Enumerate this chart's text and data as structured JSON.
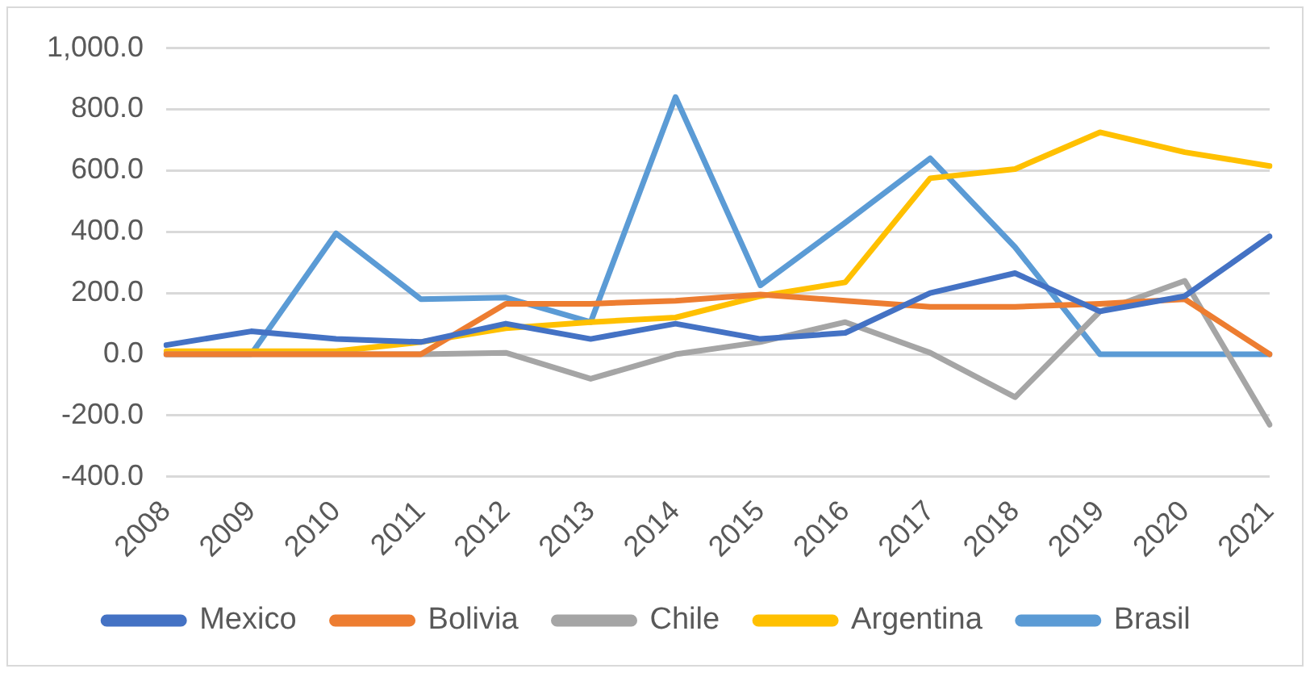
{
  "chart_data": {
    "type": "line",
    "categories": [
      "2008",
      "2009",
      "2010",
      "2011",
      "2012",
      "2013",
      "2014",
      "2015",
      "2016",
      "2017",
      "2018",
      "2019",
      "2020",
      "2021"
    ],
    "series": [
      {
        "name": "Mexico",
        "color": "#4472c4",
        "values": [
          30,
          75,
          50,
          40,
          100,
          50,
          100,
          50,
          70,
          200,
          265,
          140,
          190,
          385
        ]
      },
      {
        "name": "Bolivia",
        "color": "#ed7d31",
        "values": [
          0,
          0,
          0,
          0,
          165,
          165,
          175,
          195,
          175,
          155,
          155,
          165,
          180,
          0
        ]
      },
      {
        "name": "Chile",
        "color": "#a5a5a5",
        "values": [
          0,
          0,
          0,
          0,
          5,
          -80,
          0,
          40,
          105,
          5,
          -140,
          140,
          240,
          -230
        ]
      },
      {
        "name": "Argentina",
        "color": "#ffc000",
        "values": [
          10,
          10,
          10,
          40,
          85,
          105,
          120,
          190,
          235,
          575,
          605,
          725,
          660,
          615
        ]
      },
      {
        "name": "Brasil",
        "color": "#5b9bd5",
        "values": [
          0,
          0,
          395,
          180,
          185,
          105,
          840,
          225,
          430,
          640,
          350,
          0,
          0,
          0
        ]
      }
    ],
    "ylim": [
      -400,
      1000
    ],
    "yticks": [
      {
        "value": -400,
        "label": "-400.0"
      },
      {
        "value": -200,
        "label": "-200.0"
      },
      {
        "value": 0,
        "label": "0.0"
      },
      {
        "value": 200,
        "label": "200.0"
      },
      {
        "value": 400,
        "label": "400.0"
      },
      {
        "value": 600,
        "label": "600.0"
      },
      {
        "value": 800,
        "label": "800.0"
      },
      {
        "value": 1000,
        "label": "1,000.0"
      }
    ],
    "grid": "y",
    "legend": "bottom",
    "marker": "none",
    "line_style": "solid"
  }
}
